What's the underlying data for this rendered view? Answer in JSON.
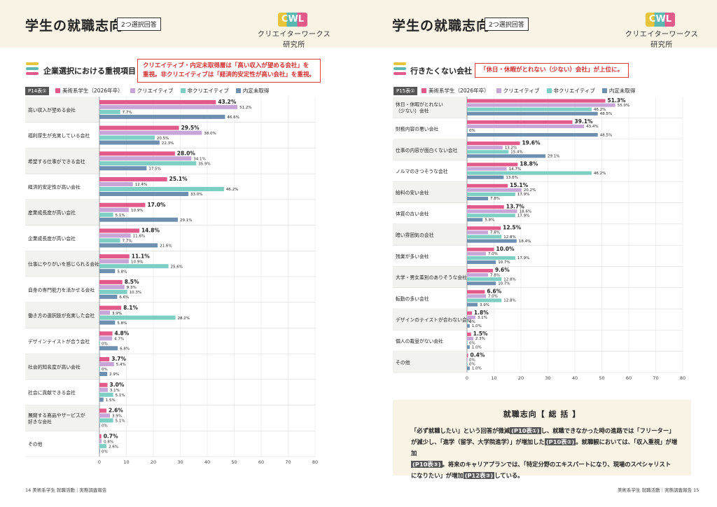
{
  "colors": {
    "c1": "#e25a8a",
    "c2": "#c7a5d6",
    "c3": "#7ccfc2",
    "c4": "#6d8fb0",
    "accent_red": "#e03d3d"
  },
  "left": {
    "title": "学生の就職志向",
    "tag": "2つ選択回答",
    "logo_mark": "CWL",
    "logo_name": "クリエイターワークス研究所",
    "section_title": "企業選択における重視項目",
    "callout": [
      "クリエイティブ・内定未取得層は「高い収入が望める会社」を",
      "重視。非クリエイティブは「経済的安定性が高い会社」を重視。"
    ],
    "table_id": "P14表①",
    "footer": "14 美術系学生 就職活動｜実態調査報告"
  },
  "right": {
    "title": "学生の就職志向",
    "tag": "2つ選択回答",
    "logo_mark": "CWL",
    "logo_name": "クリエイターワークス研究所",
    "section_title": "行きたくない会社",
    "callout": [
      "「休日・休暇がとれない（少ない）会社」が上位に。"
    ],
    "table_id": "P15表①",
    "footer": "美術系学生 就職活動｜実態調査報告 15",
    "summary_title": "就職志向【 総 括 】",
    "summary_lines": [
      [
        "「必ず就職したい」という回答が微減",
        "(P10表①)",
        "し、就職できなかった時の進路では「フリーター」"
      ],
      [
        "が減少し、「進学（留学、大学院進学）」が増加した",
        "(P10表②)",
        "。就職観においては、「収入重視」が増加"
      ],
      [
        "",
        "(P10表③)",
        "。将来のキャリアプランでは、「特定分野のエキスパートになり、現場のスペシャリスト"
      ],
      [
        "になりたい」が増加",
        "(P12表③)",
        "している。"
      ]
    ]
  },
  "legend": [
    "美術系学生（2026年卒）",
    "クリエイティブ",
    "非クリエイティブ",
    "内定未取得"
  ],
  "chart_data": [
    {
      "type": "bar",
      "orientation": "horizontal",
      "title": "企業選択における重視項目",
      "xlim": [
        0,
        80
      ],
      "ticks": [
        "0",
        "10",
        "20",
        "30",
        "40",
        "50",
        "60",
        "70",
        "80"
      ],
      "categories": [
        [
          "高い収入が望める会社"
        ],
        [
          "福利厚生が充実している会社"
        ],
        [
          "希望する仕事ができる会社"
        ],
        [
          "経済的安定性が高い会社"
        ],
        [
          "産業成長度が高い会社"
        ],
        [
          "企業成長度が高い会社"
        ],
        [
          "仕事にやりがいを感じられる会社"
        ],
        [
          "自身の専門能力を活かせる会社"
        ],
        [
          "働き方の選択肢が充実した会社"
        ],
        [
          "デザインテイストが合う会社"
        ],
        [
          "社会的知名度が高い会社"
        ],
        [
          "社会に貢献できる会社"
        ],
        [
          "展開する商品やサービスが",
          "好きな会社"
        ],
        [
          "その他"
        ]
      ],
      "series": [
        {
          "name": "美術系学生（2026年卒）",
          "values": [
            43.2,
            29.5,
            28.0,
            25.1,
            17.0,
            14.8,
            11.1,
            8.5,
            8.1,
            4.8,
            3.7,
            3.0,
            2.6,
            0.7
          ]
        },
        {
          "name": "クリエイティブ",
          "values": [
            51.2,
            38.0,
            34.1,
            12.4,
            10.9,
            11.6,
            10.9,
            9.3,
            3.9,
            4.7,
            5.4,
            3.1,
            3.9,
            0.8
          ]
        },
        {
          "name": "非クリエイティブ",
          "values": [
            7.7,
            20.5,
            35.9,
            46.2,
            5.1,
            7.7,
            25.6,
            10.3,
            28.2,
            0,
            0,
            5.1,
            5.1,
            2.6
          ]
        },
        {
          "name": "内定未取得",
          "values": [
            46.6,
            22.3,
            17.5,
            33.0,
            29.1,
            21.6,
            5.8,
            6.6,
            5.8,
            6.8,
            2.9,
            1.5,
            0,
            0
          ]
        }
      ]
    },
    {
      "type": "bar",
      "orientation": "horizontal",
      "title": "行きたくない会社",
      "xlim": [
        0,
        80
      ],
      "ticks": [
        "0",
        "10",
        "20",
        "30",
        "40",
        "50",
        "60",
        "70",
        "80"
      ],
      "categories": [
        [
          "休日・休暇がとれない",
          "（少ない）会社"
        ],
        [
          "財務内容の悪い会社"
        ],
        [
          "仕事の内容が面白くない会社"
        ],
        [
          "ノルマのきつそうな会社"
        ],
        [
          "給料の安い会社"
        ],
        [
          "体質の古い会社"
        ],
        [
          "暗い雰囲気の会社"
        ],
        [
          "残業が多い会社"
        ],
        [
          "大学・男女差別のありそうな会社"
        ],
        [
          "転勤の多い会社"
        ],
        [
          "デザインのテイストが合わない会社"
        ],
        [
          "個人の裁量がない会社"
        ],
        [
          "その他"
        ]
      ],
      "series": [
        {
          "name": "美術系学生（2026年卒）",
          "values": [
            51.3,
            39.1,
            19.6,
            18.8,
            15.1,
            13.7,
            12.5,
            10.0,
            9.6,
            6.6,
            1.8,
            1.5,
            0.4
          ]
        },
        {
          "name": "クリエイティブ",
          "values": [
            55.0,
            43.4,
            13.2,
            14.7,
            20.2,
            18.6,
            7.8,
            7.0,
            7.8,
            7.0,
            3.1,
            2.3,
            0
          ]
        },
        {
          "name": "非クリエイティブ",
          "values": [
            46.2,
            0,
            15.4,
            46.2,
            17.9,
            17.9,
            12.8,
            17.9,
            12.8,
            12.8,
            0,
            0,
            0
          ]
        },
        {
          "name": "内定未取得",
          "values": [
            48.5,
            48.5,
            29.1,
            13.6,
            7.8,
            5.8,
            18.4,
            10.7,
            10.7,
            3.9,
            1.0,
            1.0,
            1.0
          ]
        }
      ]
    }
  ]
}
